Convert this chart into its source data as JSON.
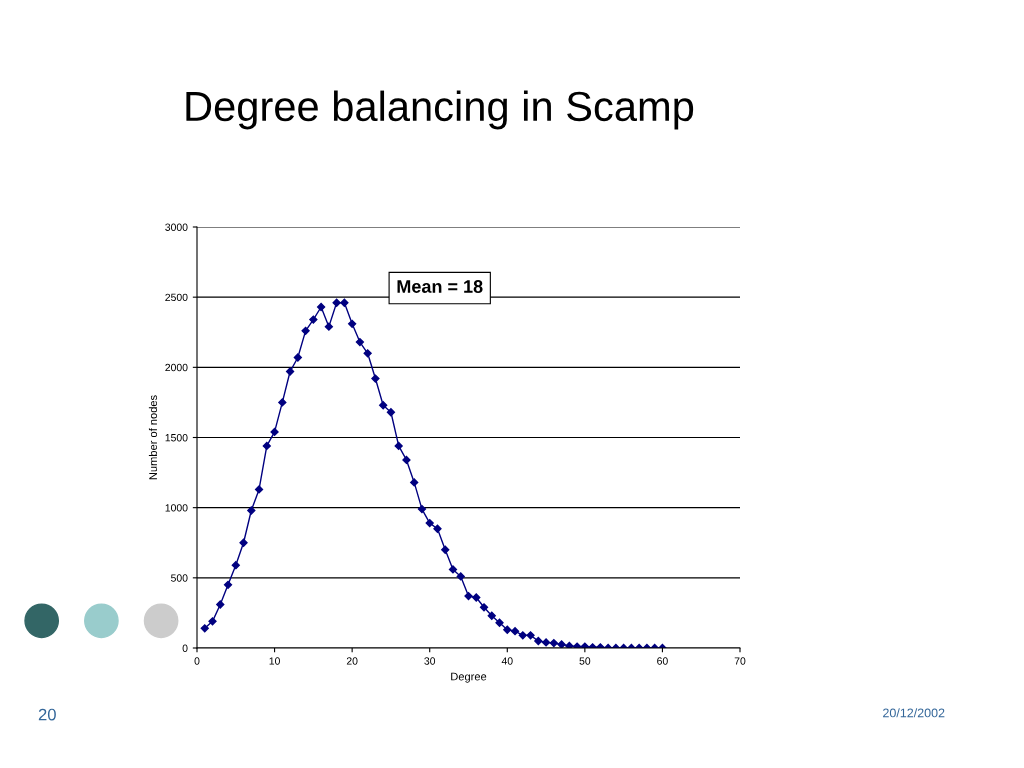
{
  "chart_data": {
    "type": "line",
    "title": "Degree balancing in Scamp",
    "xlabel": "Degree",
    "ylabel": "Number of nodes",
    "x": [
      1,
      2,
      3,
      4,
      5,
      6,
      7,
      8,
      9,
      10,
      11,
      12,
      13,
      14,
      15,
      16,
      17,
      18,
      19,
      20,
      21,
      22,
      23,
      24,
      25,
      26,
      27,
      28,
      29,
      30,
      31,
      32,
      33,
      34,
      35,
      36,
      37,
      38,
      39,
      40,
      41,
      42,
      43,
      44,
      45,
      46,
      47,
      48,
      49,
      50,
      51,
      52,
      53,
      54,
      55,
      56,
      57,
      58,
      59,
      60
    ],
    "series": [
      {
        "color": "#000080",
        "values": [
          140,
          190,
          310,
          450,
          590,
          750,
          980,
          1130,
          1440,
          1540,
          1750,
          1970,
          2070,
          2260,
          2340,
          2430,
          2290,
          2460,
          2460,
          2310,
          2180,
          2100,
          1920,
          1730,
          1680,
          1440,
          1340,
          1180,
          990,
          890,
          850,
          700,
          560,
          510,
          370,
          360,
          290,
          230,
          180,
          130,
          120,
          90,
          90,
          50,
          40,
          35,
          25,
          15,
          10,
          10,
          5,
          5,
          0,
          0,
          0,
          0,
          0,
          0,
          0,
          0
        ]
      }
    ],
    "xlim": [
      0,
      70
    ],
    "xticks": [
      0,
      10,
      20,
      30,
      40,
      50,
      60,
      70
    ],
    "ylim": [
      0,
      3000
    ],
    "yticks": [
      0,
      500,
      1000,
      1500,
      2000,
      2500,
      3000
    ],
    "grid": "y",
    "marker": "diamond",
    "line_style": "solid",
    "legend": false,
    "annotations": [
      "Mean = 18",
      "20",
      "20/12/2002"
    ]
  }
}
